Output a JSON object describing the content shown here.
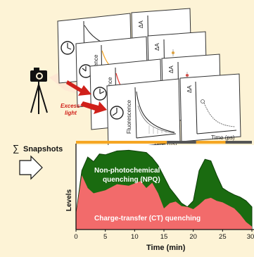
{
  "snapshot_labels": {
    "fluorescence": "Fluorescence",
    "fluorescence_short": "rescence",
    "delta_a": "ΔA",
    "time_ns": "Time (ns)",
    "time_ps": "Time (ps)"
  },
  "excess_light": {
    "line1": "Excess",
    "line2": "light"
  },
  "snapshots_label": {
    "symbol": "∑",
    "text": "Snapshots"
  },
  "chart_data": {
    "type": "area",
    "xlabel": "Time (min)",
    "ylabel": "Levels",
    "x_ticks": [
      0,
      5,
      10,
      15,
      20,
      25,
      30
    ],
    "xlim": [
      0,
      30
    ],
    "series": [
      {
        "name": "Charge-transfer (CT) quenching",
        "color": "#f26b6b",
        "x": [
          0,
          1,
          2,
          3,
          5,
          7,
          9,
          11,
          12,
          13,
          14,
          15,
          16,
          17,
          18,
          19,
          20,
          21,
          22,
          23,
          24,
          25,
          26,
          27,
          28,
          29,
          30
        ],
        "values": [
          0.2,
          0.72,
          0.55,
          0.48,
          0.52,
          0.6,
          0.58,
          0.64,
          0.55,
          0.62,
          0.48,
          0.28,
          0.35,
          0.37,
          0.31,
          0.3,
          0.27,
          0.33,
          0.4,
          0.42,
          0.38,
          0.36,
          0.32,
          0.28,
          0.2,
          0.1,
          0.04
        ]
      },
      {
        "name": "Non-photochemical quenching (NPQ)",
        "color": "#1a6b10",
        "x": [
          0,
          1,
          2,
          3,
          4,
          5,
          7,
          9,
          10,
          11,
          12,
          13,
          14,
          15,
          16,
          17,
          18,
          19,
          20,
          21,
          22,
          23,
          24,
          25,
          26,
          27,
          28,
          29,
          30
        ],
        "values": [
          0.2,
          0.78,
          0.96,
          0.9,
          1.0,
          0.99,
          1.04,
          1.05,
          1.04,
          1.03,
          1.02,
          0.95,
          0.85,
          0.7,
          0.55,
          0.45,
          0.35,
          0.3,
          0.38,
          0.78,
          0.93,
          0.91,
          0.72,
          0.55,
          0.5,
          0.46,
          0.43,
          0.38,
          0.3
        ]
      }
    ],
    "light_bar": [
      {
        "from": 0,
        "to": 15.5,
        "state": "light",
        "color": "#f5a623"
      },
      {
        "from": 15.5,
        "to": 20.5,
        "state": "dark",
        "color": "#555555"
      },
      {
        "from": 20.5,
        "to": 25.5,
        "state": "light",
        "color": "#f5a623"
      },
      {
        "from": 25.5,
        "to": 30,
        "state": "dark",
        "color": "#555555"
      }
    ]
  },
  "area_labels": {
    "npq_line1": "Non-photochemical",
    "npq_line2": "quenching (NPQ)",
    "ct": "Charge-transfer (CT) quenching"
  },
  "colors": {
    "background": "#fdf3d6",
    "excess_light": "#d0201a",
    "camera": "#111111"
  }
}
